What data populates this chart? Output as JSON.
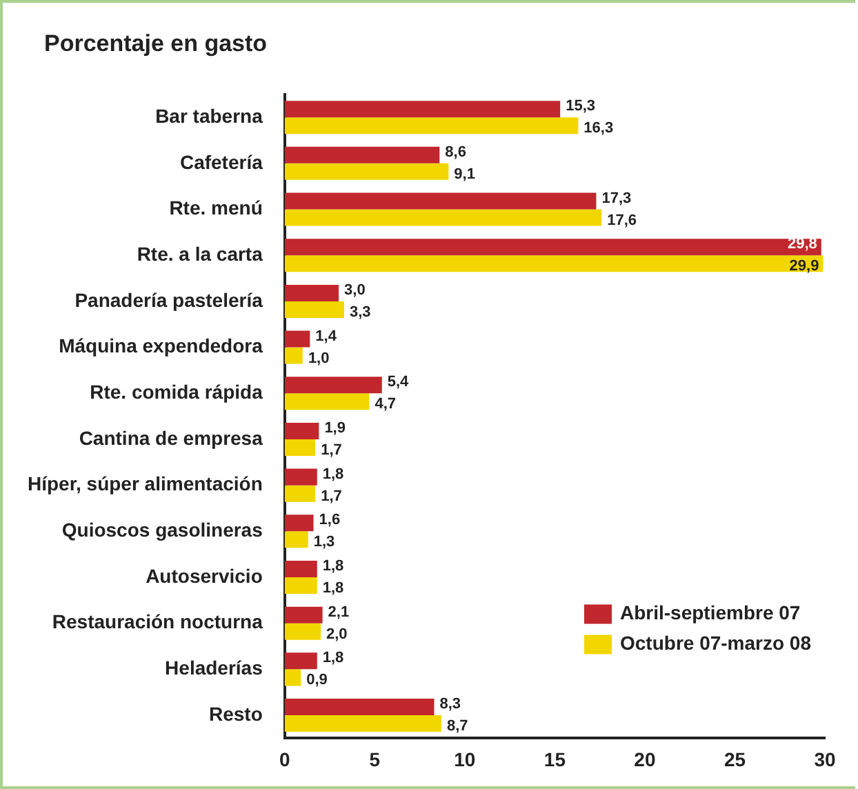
{
  "chart_data": {
    "type": "bar",
    "orientation": "horizontal",
    "title": "Porcentaje en gasto",
    "categories": [
      "Bar taberna",
      "Cafetería",
      "Rte. menú",
      "Rte. a la carta",
      "Panadería pastelería",
      "Máquina expendedora",
      "Rte. comida rápida",
      "Cantina de empresa",
      "Híper, súper alimentación",
      "Quioscos gasolineras",
      "Autoservicio",
      "Restauración nocturna",
      "Heladerías",
      "Resto"
    ],
    "series": [
      {
        "name": "Abril-septiembre 07",
        "color": "#c1272d",
        "values": [
          15.3,
          8.6,
          17.3,
          29.8,
          3.0,
          1.4,
          5.4,
          1.9,
          1.8,
          1.6,
          1.8,
          2.1,
          1.8,
          8.3
        ],
        "value_labels": [
          "15,3",
          "8,6",
          "17,3",
          "29,8",
          "3,0",
          "1,4",
          "5,4",
          "1,9",
          "1,8",
          "1,6",
          "1,8",
          "2,1",
          "1,8",
          "8,3"
        ]
      },
      {
        "name": "Octubre 07-marzo 08",
        "color": "#f2d600",
        "values": [
          16.3,
          9.1,
          17.6,
          29.9,
          3.3,
          1.0,
          4.7,
          1.7,
          1.7,
          1.3,
          1.8,
          2.0,
          0.9,
          8.7
        ],
        "value_labels": [
          "16,3",
          "9,1",
          "17,6",
          "29,9",
          "3,3",
          "1,0",
          "4,7",
          "1,7",
          "1,7",
          "1,3",
          "1,8",
          "2,0",
          "0,9",
          "8,7"
        ]
      }
    ],
    "xlim": [
      0,
      30
    ],
    "xticks": [
      0,
      5,
      10,
      15,
      20,
      25,
      30
    ],
    "grid": false,
    "legend": "bottom right"
  }
}
